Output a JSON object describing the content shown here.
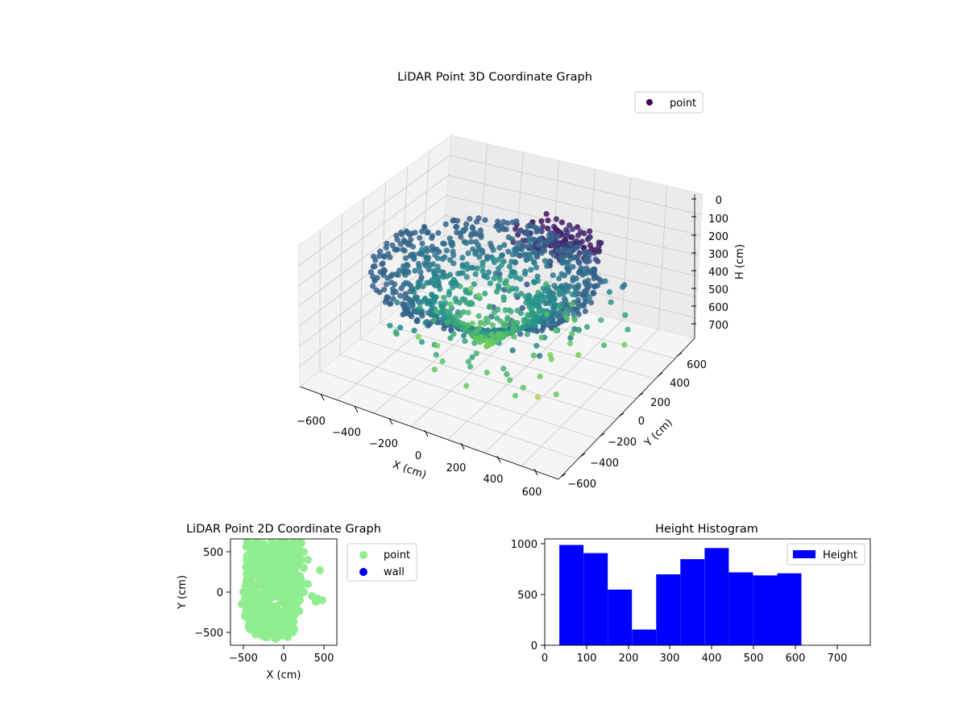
{
  "colors": {
    "viridis_dark": "#440154",
    "viridis_mid": "#21918c",
    "viridis_light": "#fde725",
    "scatter2d_point": "#90ee90",
    "scatter2d_wall": "#0000ff",
    "histogram_bar": "#0000ff"
  },
  "chart_data": [
    {
      "type": "scatter",
      "title": "LiDAR Point 3D Coordinate Graph",
      "xlabel": "X (cm)",
      "ylabel": "Y (cm)",
      "zlabel": "H (cm)",
      "xlim": [
        -650,
        650
      ],
      "ylim": [
        -650,
        650
      ],
      "zlim": [
        750,
        0
      ],
      "x_ticks": [
        "−600",
        "−400",
        "−200",
        "0",
        "200",
        "400",
        "600"
      ],
      "y_ticks": [
        "−600",
        "−400",
        "−200",
        "0",
        "200",
        "400",
        "600"
      ],
      "z_ticks": [
        "0",
        "100",
        "200",
        "300",
        "400",
        "500",
        "600",
        "700"
      ],
      "grid": true,
      "colormap": "viridis",
      "legend": {
        "entries": [
          "point"
        ],
        "position": "top-right"
      },
      "series": [
        {
          "name": "point",
          "description_points": [
            {
              "x": -500,
              "y": 200,
              "h": 350
            },
            {
              "x": -400,
              "y": 400,
              "h": 300
            },
            {
              "x": -300,
              "y": -400,
              "h": 450
            },
            {
              "x": 0,
              "y": 0,
              "h": 200
            },
            {
              "x": -100,
              "y": -200,
              "h": 350
            },
            {
              "x": 100,
              "y": -300,
              "h": 550
            },
            {
              "x": 200,
              "y": 100,
              "h": 600
            },
            {
              "x": 300,
              "y": -200,
              "h": 650
            },
            {
              "x": 400,
              "y": 400,
              "h": 300
            },
            {
              "x": 480,
              "y": 300,
              "h": 450
            }
          ]
        }
      ]
    },
    {
      "type": "scatter",
      "title": "LiDAR Point 2D Coordinate Graph",
      "xlabel": "X (cm)",
      "ylabel": "Y (cm)",
      "xlim": [
        -650,
        650
      ],
      "ylim": [
        -650,
        650
      ],
      "x_ticks": [
        "−500",
        "0",
        "500"
      ],
      "y_ticks": [
        "−500",
        "0",
        "500"
      ],
      "legend": {
        "entries": [
          "point",
          "wall"
        ],
        "position": "outside-right"
      },
      "series": [
        {
          "name": "point",
          "points": [
            [
              -400,
              500
            ],
            [
              -350,
              550
            ],
            [
              -250,
              600
            ],
            [
              -150,
              630
            ],
            [
              -50,
              620
            ],
            [
              50,
              600
            ],
            [
              150,
              560
            ],
            [
              250,
              500
            ],
            [
              300,
              400
            ],
            [
              250,
              300
            ],
            [
              200,
              200
            ],
            [
              300,
              100
            ],
            [
              250,
              0
            ],
            [
              200,
              -100
            ],
            [
              150,
              -200
            ],
            [
              100,
              -300
            ],
            [
              50,
              -400
            ],
            [
              0,
              -500
            ],
            [
              -100,
              -580
            ],
            [
              -200,
              -560
            ],
            [
              -300,
              -500
            ],
            [
              -400,
              -420
            ],
            [
              -480,
              -300
            ],
            [
              -520,
              -150
            ],
            [
              -500,
              0
            ],
            [
              -460,
              150
            ],
            [
              -430,
              300
            ],
            [
              -420,
              420
            ],
            [
              -300,
              200
            ],
            [
              -200,
              0
            ],
            [
              -100,
              -200
            ],
            [
              0,
              100
            ],
            [
              100,
              300
            ],
            [
              -200,
              400
            ],
            [
              -100,
              450
            ],
            [
              450,
              270
            ],
            [
              420,
              -80
            ],
            [
              480,
              -100
            ],
            [
              400,
              -120
            ],
            [
              350,
              -50
            ],
            [
              -50,
              -300
            ],
            [
              -250,
              -200
            ]
          ]
        },
        {
          "name": "wall",
          "points": []
        }
      ]
    },
    {
      "type": "bar",
      "title": "Height Histogram",
      "xlim": [
        0,
        780
      ],
      "ylim": [
        0,
        1050
      ],
      "x_ticks": [
        "0",
        "100",
        "200",
        "300",
        "400",
        "500",
        "600",
        "700"
      ],
      "y_ticks": [
        "0",
        "500",
        "1000"
      ],
      "legend": {
        "entries": [
          "Height"
        ],
        "position": "top-right"
      },
      "series": [
        {
          "name": "Height",
          "bins": [
            {
              "from": 35,
              "to": 93,
              "count": 990
            },
            {
              "from": 93,
              "to": 151,
              "count": 910
            },
            {
              "from": 151,
              "to": 209,
              "count": 550
            },
            {
              "from": 209,
              "to": 267,
              "count": 155
            },
            {
              "from": 267,
              "to": 325,
              "count": 700
            },
            {
              "from": 325,
              "to": 383,
              "count": 850
            },
            {
              "from": 383,
              "to": 441,
              "count": 960
            },
            {
              "from": 441,
              "to": 499,
              "count": 720
            },
            {
              "from": 499,
              "to": 557,
              "count": 690
            },
            {
              "from": 557,
              "to": 615,
              "count": 710
            }
          ]
        }
      ]
    }
  ]
}
